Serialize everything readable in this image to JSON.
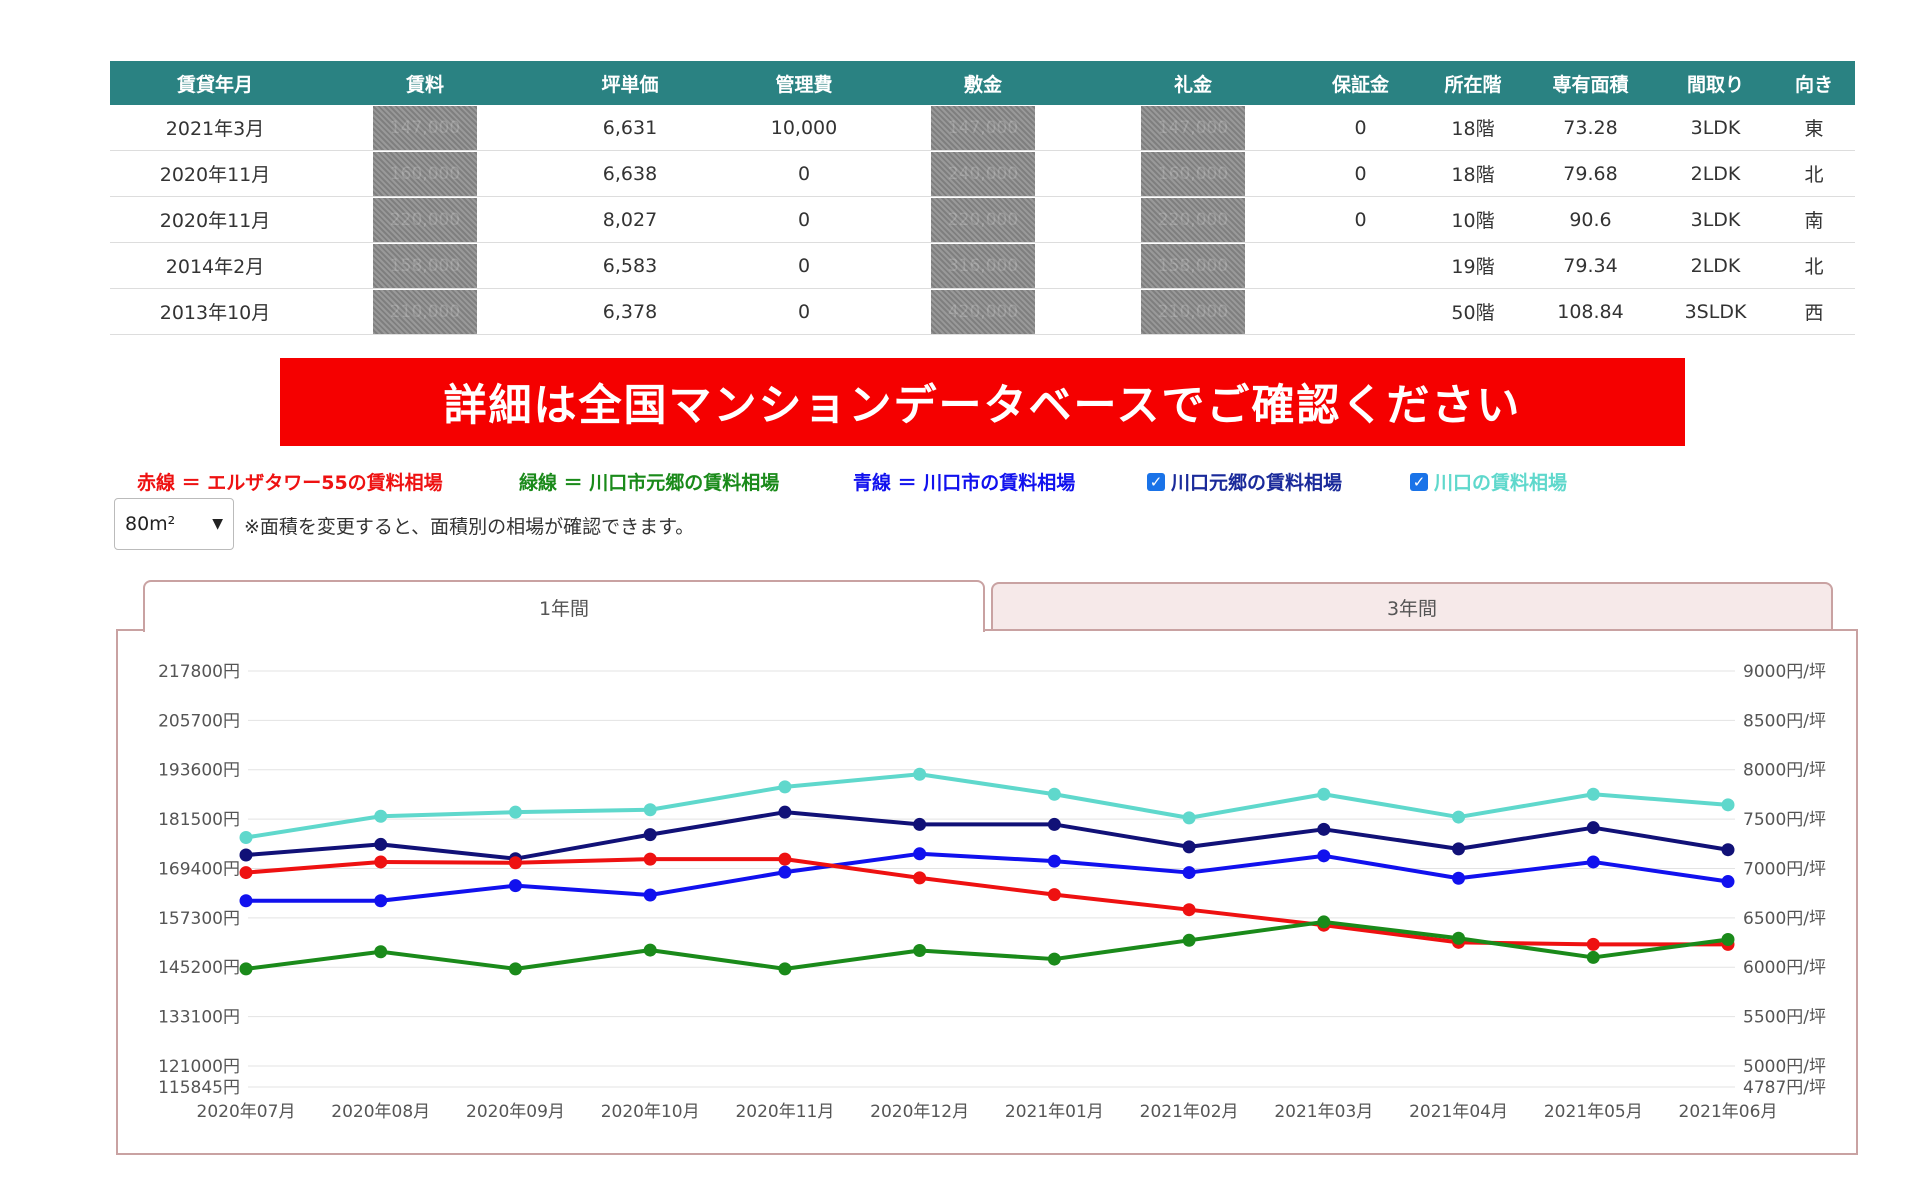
{
  "table": {
    "headers": [
      "賃貸年月",
      "賃料",
      "坪単価",
      "管理費",
      "敷金",
      "礼金",
      "保証金",
      "所在階",
      "専有面積",
      "間取り",
      "向き"
    ],
    "rows": [
      {
        "date": "2021年3月",
        "rent": "147,000",
        "tsubo": "6,631",
        "mgmt": "10,000",
        "deposit": "147,000",
        "keymoney": "147,000",
        "guarantee": "0",
        "floor": "18階",
        "area": "73.28",
        "layout": "3LDK",
        "dir": "東"
      },
      {
        "date": "2020年11月",
        "rent": "160,000",
        "tsubo": "6,638",
        "mgmt": "0",
        "deposit": "240,000",
        "keymoney": "160,000",
        "guarantee": "0",
        "floor": "18階",
        "area": "79.68",
        "layout": "2LDK",
        "dir": "北"
      },
      {
        "date": "2020年11月",
        "rent": "220,000",
        "tsubo": "8,027",
        "mgmt": "0",
        "deposit": "220,000",
        "keymoney": "220,000",
        "guarantee": "0",
        "floor": "10階",
        "area": "90.6",
        "layout": "3LDK",
        "dir": "南"
      },
      {
        "date": "2014年2月",
        "rent": "158,000",
        "tsubo": "6,583",
        "mgmt": "0",
        "deposit": "316,000",
        "keymoney": "158,000",
        "guarantee": "",
        "floor": "19階",
        "area": "79.34",
        "layout": "2LDK",
        "dir": "北"
      },
      {
        "date": "2013年10月",
        "rent": "210,000",
        "tsubo": "6,378",
        "mgmt": "0",
        "deposit": "420,000",
        "keymoney": "210,000",
        "guarantee": "",
        "floor": "50階",
        "area": "108.84",
        "layout": "3SLDK",
        "dir": "西"
      }
    ]
  },
  "banner": "詳細は全国マンションデータベースでご確認ください",
  "legend": {
    "red": "赤線 ＝ エルザタワー55の賃料相場",
    "green": "緑線 ＝ 川口市元郷の賃料相場",
    "blue": "青線 ＝ 川口市の賃料相場",
    "check1": "川口元郷の賃料相場",
    "check2": "川口の賃料相場"
  },
  "colors": {
    "red": "#ee1111",
    "green": "#1a8a1a",
    "blue": "#1111ee",
    "navy": "#111177",
    "turquoise": "#5fd8cc",
    "header": "#2a8282",
    "check1_text": "#1a2a9a",
    "check2_text": "#5fd8cc"
  },
  "area_select": {
    "value": "80m²",
    "icon": "chevron-down-icon"
  },
  "area_note": "※面積を変更すると、面積別の相場が確認できます。",
  "tabs": {
    "one_year": "1年間",
    "three_year": "3年間"
  },
  "chart_data": {
    "type": "line",
    "x": [
      "2020年07月",
      "2020年08月",
      "2020年09月",
      "2020年10月",
      "2020年11月",
      "2020年12月",
      "2021年01月",
      "2021年02月",
      "2021年03月",
      "2021年04月",
      "2021年05月",
      "2021年06月"
    ],
    "left_ticks": [
      "217800円",
      "205700円",
      "193600円",
      "181500円",
      "169400円",
      "157300円",
      "145200円",
      "133100円",
      "121000円",
      "115845円"
    ],
    "right_ticks": [
      "9000円/坪",
      "8500円/坪",
      "8000円/坪",
      "7500円/坪",
      "7000円/坪",
      "6500円/坪",
      "6000円/坪",
      "5500円/坪",
      "5000円/坪",
      "4787円/坪"
    ],
    "ylim": [
      115845,
      217800
    ],
    "series": [
      {
        "key": "turquoise",
        "values": [
          177000,
          182200,
          183200,
          183800,
          189400,
          192500,
          187600,
          181800,
          187600,
          182000,
          187600,
          185000
        ]
      },
      {
        "key": "navy",
        "values": [
          172700,
          175300,
          171800,
          177700,
          183200,
          180200,
          180200,
          174700,
          179000,
          174200,
          179400,
          174000
        ]
      },
      {
        "key": "blue",
        "values": [
          161500,
          161500,
          165200,
          162900,
          168500,
          173000,
          171200,
          168400,
          172500,
          167000,
          171000,
          166200
        ]
      },
      {
        "key": "red",
        "values": [
          168400,
          171000,
          170800,
          171700,
          171700,
          167100,
          163000,
          159300,
          155500,
          151300,
          150800,
          150800
        ]
      },
      {
        "key": "green",
        "values": [
          144800,
          149000,
          144800,
          149400,
          144800,
          149300,
          147200,
          151800,
          156300,
          152300,
          147600,
          152000
        ]
      }
    ]
  }
}
